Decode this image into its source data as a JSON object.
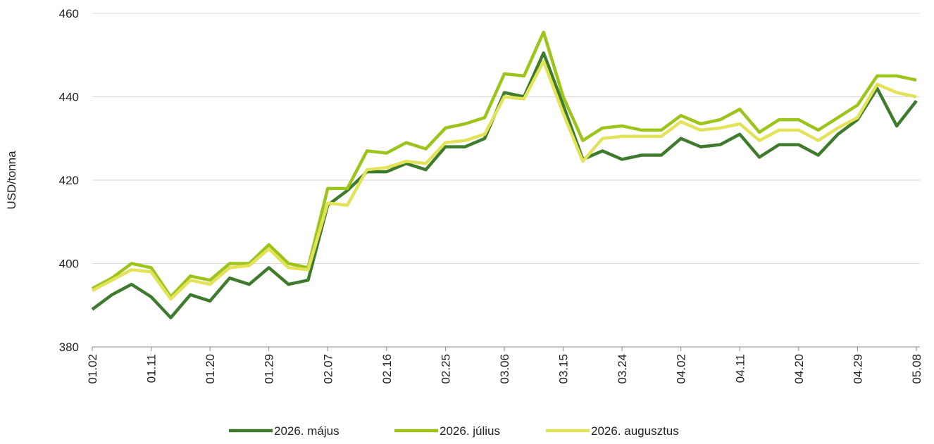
{
  "chart_data": {
    "type": "line",
    "y_label": "USD/tonna",
    "categories": [
      "01.02",
      null,
      null,
      "01.11",
      null,
      null,
      "01.20",
      null,
      null,
      "01.29",
      null,
      null,
      "02.07",
      null,
      null,
      "02.16",
      null,
      null,
      "02.25",
      null,
      null,
      "03.06",
      null,
      null,
      "03.15",
      null,
      null,
      "03.24",
      null,
      null,
      "04.02",
      null,
      null,
      "04.11",
      null,
      null,
      "04.20",
      null,
      null,
      "04.29",
      null,
      null,
      "05.08"
    ],
    "series": [
      {
        "name": "2026. május",
        "color": "#3f7b2c",
        "values": [
          389,
          392.5,
          395,
          392,
          387,
          392.5,
          391,
          396.5,
          395,
          399,
          395,
          396,
          414,
          417.5,
          422,
          422,
          424,
          422.5,
          428,
          428,
          430,
          441,
          440,
          450.5,
          438,
          425,
          427,
          425,
          426,
          426,
          430,
          428,
          428.5,
          431,
          425.5,
          428.5,
          428.5,
          426,
          431,
          434.5,
          442,
          433,
          439
        ]
      },
      {
        "name": "2026. július",
        "color": "#9dc41a",
        "values": [
          394,
          396.5,
          400,
          399,
          392,
          397,
          396,
          400,
          400,
          404.5,
          400,
          399,
          418,
          418,
          427,
          426.5,
          429,
          427.5,
          432.5,
          433.5,
          435,
          445.5,
          445,
          455.5,
          440,
          429.5,
          432.5,
          433,
          432,
          432,
          435.5,
          433.5,
          434.5,
          437,
          431.5,
          434.5,
          434.5,
          432,
          435,
          438,
          445,
          445,
          444
        ]
      },
      {
        "name": "2026. augusztus",
        "color": "#e3e35a",
        "values": [
          393.5,
          396,
          398.5,
          398,
          391.5,
          396,
          395,
          399,
          399.5,
          403.5,
          399,
          398.5,
          414.5,
          414,
          422.5,
          423,
          424.5,
          424,
          429,
          429.5,
          431,
          440,
          439.5,
          448.5,
          436,
          424.5,
          430,
          430.5,
          430.5,
          430.5,
          434,
          432,
          432.5,
          433.5,
          429.5,
          432,
          432,
          429.5,
          432.5,
          435,
          443,
          441,
          440
        ]
      }
    ],
    "ylim": [
      380,
      460
    ],
    "yticks": [
      380,
      400,
      420,
      440,
      460
    ],
    "grid": true,
    "legend": "bottom"
  }
}
